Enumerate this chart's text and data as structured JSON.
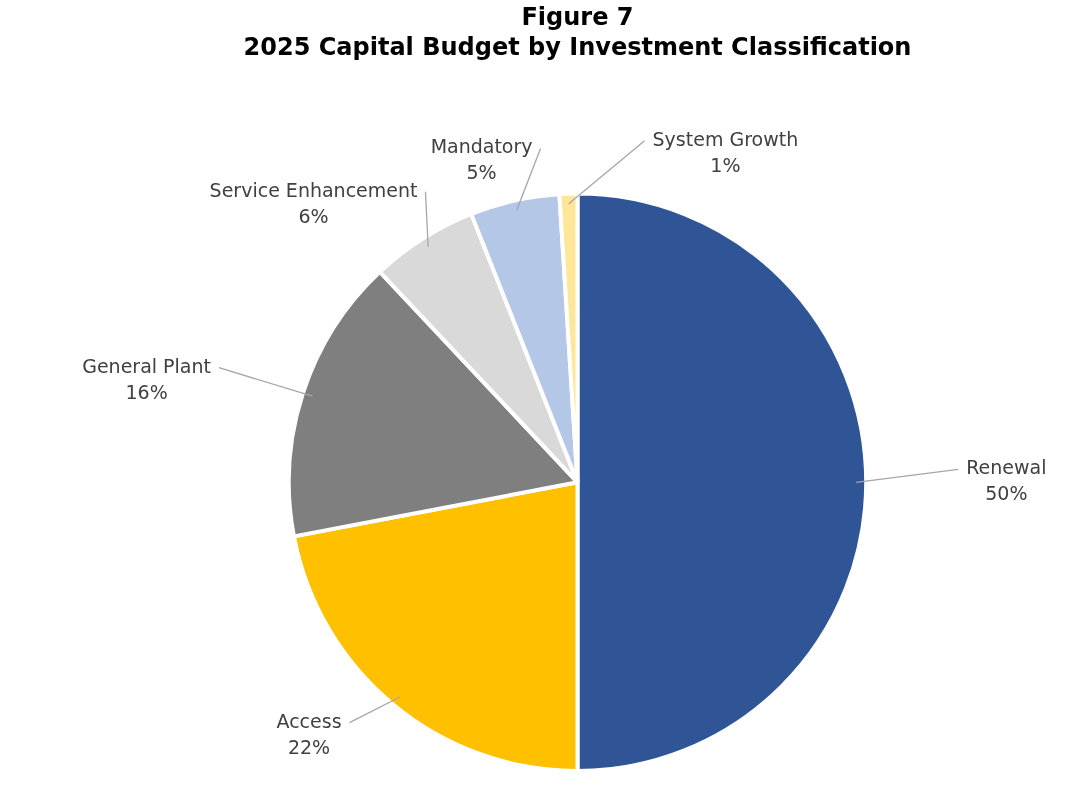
{
  "chart_data": {
    "type": "pie",
    "title": "Figure 7",
    "subtitle": "2025 Capital Budget by Investment Classification",
    "categories": [
      "Renewal",
      "Access",
      "General Plant",
      "Service Enhancement",
      "Mandatory",
      "System Growth"
    ],
    "values": [
      50,
      22,
      16,
      6,
      5,
      1
    ],
    "colors": [
      "#2f5597",
      "#ffc000",
      "#7f7f7f",
      "#d9d9d9",
      "#b4c7e7",
      "#ffe699"
    ],
    "value_labels": [
      "50%",
      "22%",
      "16%",
      "6%",
      "5%",
      "1%"
    ],
    "legend": false
  }
}
